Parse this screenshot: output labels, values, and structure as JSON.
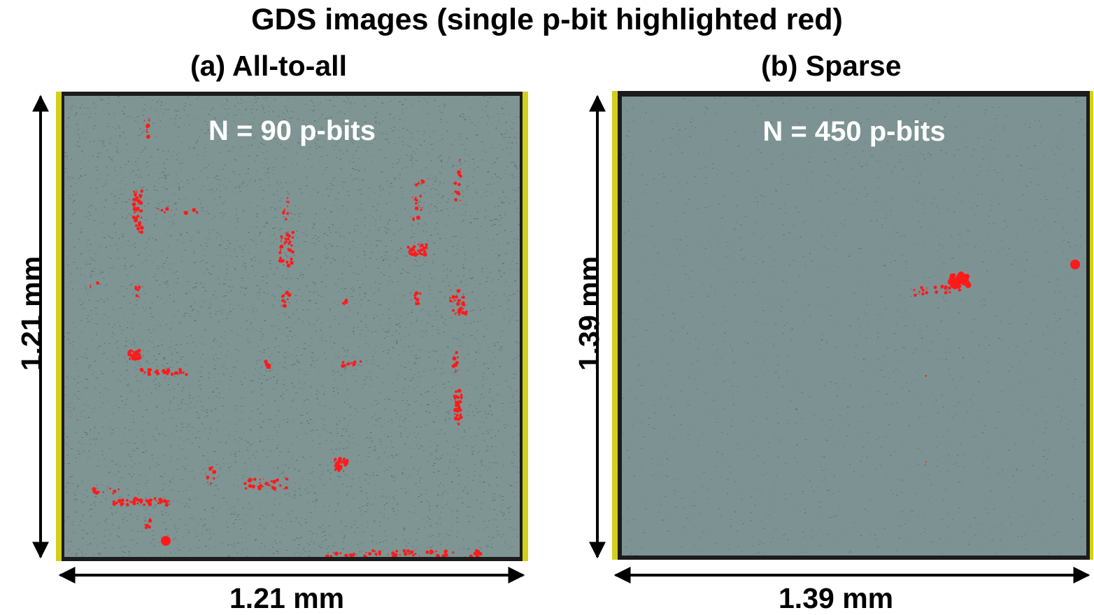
{
  "title": "GDS images (single p-bit highlighted red)",
  "panels": [
    {
      "label": "(a) All-to-all",
      "count_label": "N = 90 p-bits",
      "width_label": "1.21 mm",
      "height_label": "1.21 mm"
    },
    {
      "label": "(b) Sparse",
      "count_label": "N = 450 p-bits",
      "width_label": "1.39 mm",
      "height_label": "1.39 mm"
    }
  ],
  "colors": {
    "chip_background": "#7f9594",
    "chip_border": "#1c1c1c",
    "ruler": "#d4cf1c",
    "highlight": "#ff1a1a",
    "label_text": "#ffffff"
  }
}
